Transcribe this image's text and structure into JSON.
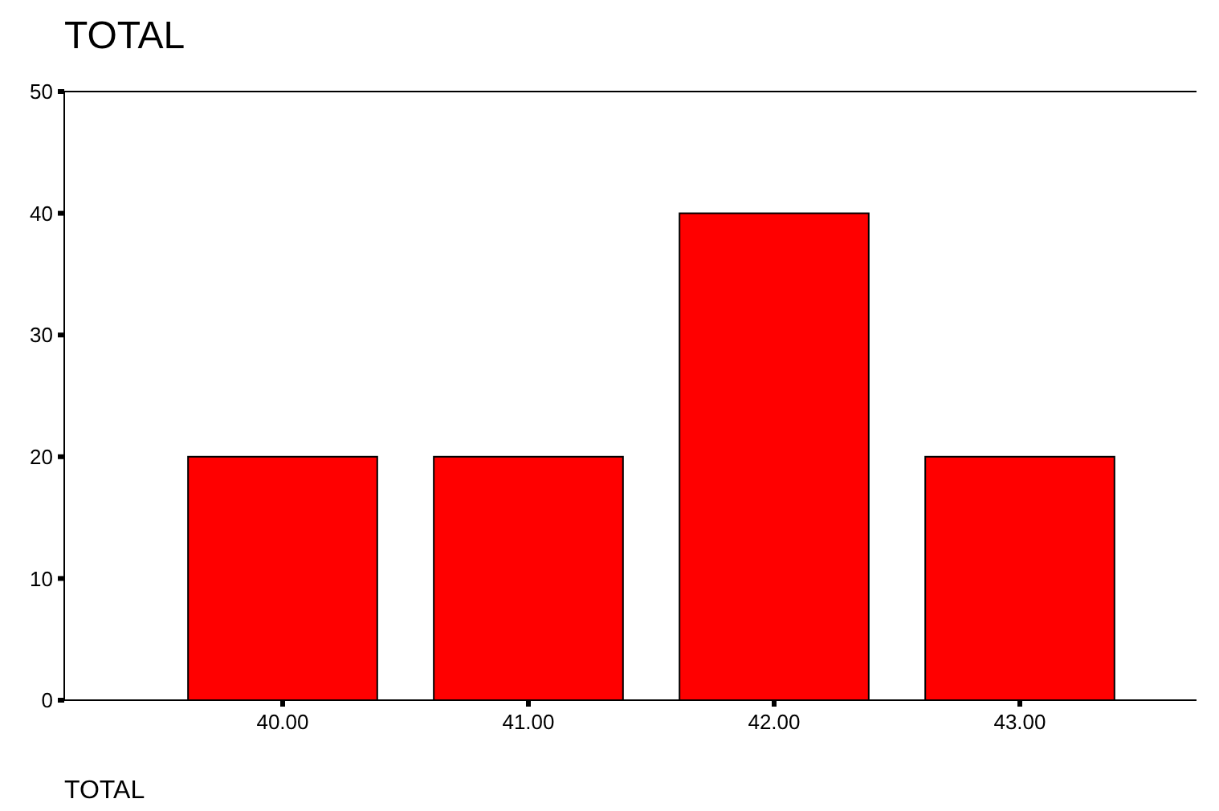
{
  "chart_data": {
    "type": "bar",
    "title": "TOTAL",
    "xlabel": "TOTAL",
    "categories": [
      "40.00",
      "41.00",
      "42.00",
      "43.00"
    ],
    "values": [
      20,
      20,
      40,
      20
    ],
    "color": "#ff0000",
    "ylim": [
      0,
      50
    ],
    "yticks": [
      0,
      10,
      20,
      30,
      40,
      50
    ],
    "grid": false
  }
}
